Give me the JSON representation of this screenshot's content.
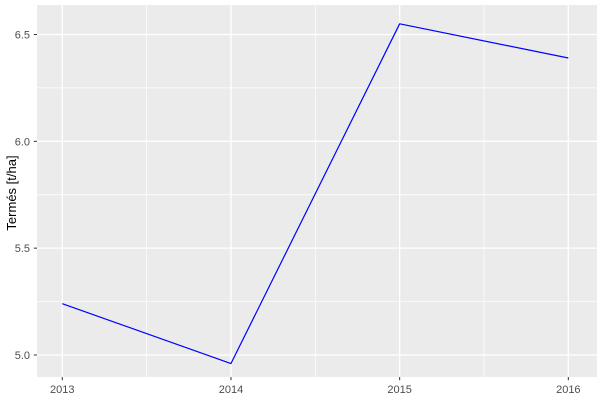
{
  "chart_data": {
    "type": "line",
    "title": "",
    "xlabel": "",
    "ylabel": "Termés [t/ha]",
    "x": [
      2013,
      2014,
      2015,
      2016
    ],
    "series": [
      {
        "name": "Termés [t/ha]",
        "color": "#0000FF",
        "values": [
          5.24,
          4.96,
          6.55,
          6.39
        ]
      }
    ],
    "x_ticks": {
      "values": [
        2013,
        2014,
        2015,
        2016
      ],
      "labels": [
        "2013",
        "2014",
        "2015",
        "2016"
      ]
    },
    "y_ticks": {
      "values": [
        5.0,
        5.5,
        6.0,
        6.5
      ],
      "labels": [
        "5.0",
        "5.5",
        "6.0",
        "6.5"
      ]
    },
    "x_minor": [
      2013.5,
      2014.5,
      2015.5
    ],
    "y_minor": [
      5.25,
      5.75,
      6.25
    ],
    "xlim": [
      2012.85,
      2016.17
    ],
    "ylim": [
      4.897,
      6.638
    ],
    "grid": "on",
    "legend": "none",
    "colors": {
      "line": "#0000FF",
      "panel_background": "#EBEBEB",
      "gridline": "#FFFFFF",
      "tick_mark": "#333333",
      "tick_label": "#4D4D4D",
      "axis_title": "#000000",
      "figure_background": "#FFFFFF"
    }
  }
}
